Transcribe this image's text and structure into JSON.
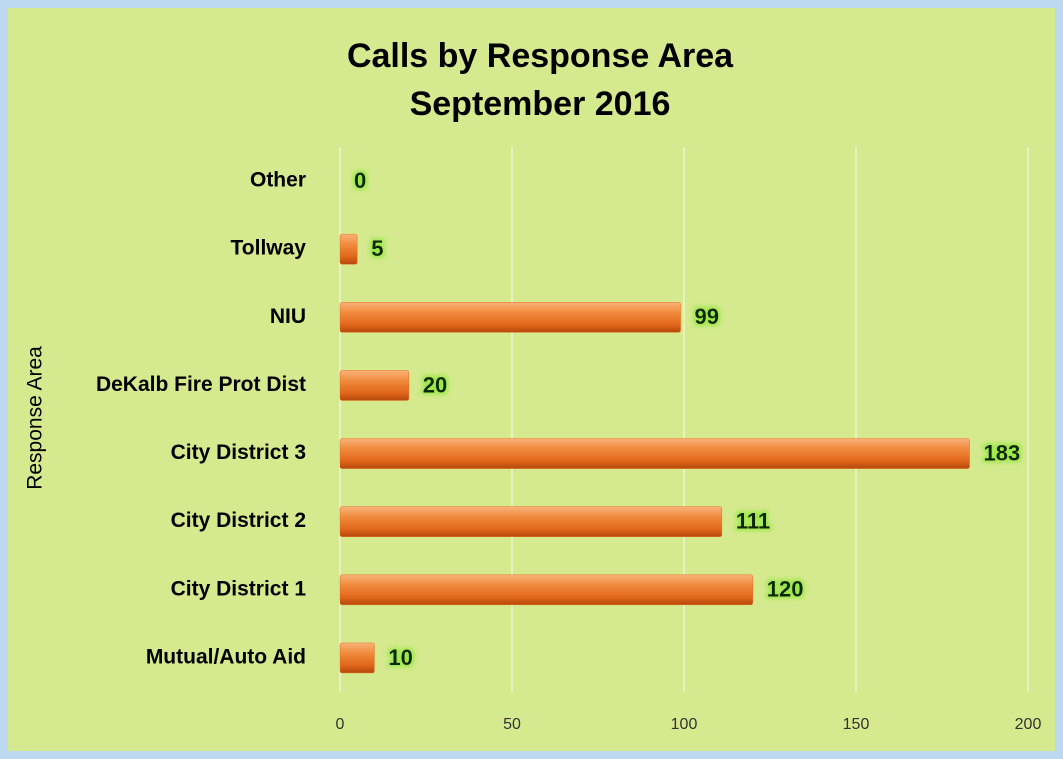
{
  "chart_data": {
    "type": "bar",
    "orientation": "horizontal",
    "title": "Calls by Response Area",
    "subtitle": "September 2016",
    "y_label": "Response Area",
    "categories": [
      "Other",
      "Tollway",
      "NIU",
      "DeKalb Fire Prot Dist",
      "City District 3",
      "City District 2",
      "City District 1",
      "Mutual/Auto Aid"
    ],
    "values": [
      0,
      5,
      99,
      20,
      183,
      111,
      120,
      10
    ],
    "color": "#e8701e",
    "xlim": [
      0,
      200
    ],
    "xticks": [
      0,
      50,
      100,
      150,
      200
    ],
    "grid": true
  }
}
